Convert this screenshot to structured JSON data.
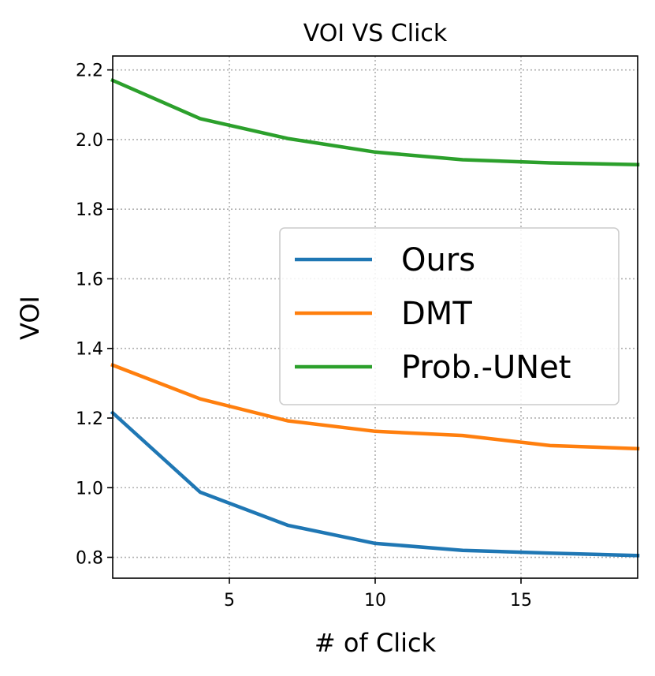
{
  "chart_data": {
    "type": "line",
    "title": "VOI VS Click",
    "xlabel": "# of Click",
    "ylabel": "VOI",
    "xlim": [
      1,
      19
    ],
    "ylim": [
      0.74,
      2.24
    ],
    "xticks": [
      5,
      10,
      15
    ],
    "xtick_labels": [
      "5",
      "10",
      "15"
    ],
    "yticks": [
      0.8,
      1.0,
      1.2,
      1.4,
      1.6,
      1.8,
      2.0,
      2.2
    ],
    "ytick_labels": [
      "0.8",
      "1.0",
      "1.2",
      "1.4",
      "1.6",
      "1.8",
      "2.0",
      "2.2"
    ],
    "grid": true,
    "legend_position": "center-right",
    "x": [
      1,
      4,
      7,
      10,
      13,
      16,
      19
    ],
    "series": [
      {
        "name": "Ours",
        "color": "#1f77b4",
        "values": [
          1.215,
          0.987,
          0.892,
          0.84,
          0.82,
          0.812,
          0.805
        ]
      },
      {
        "name": "DMT",
        "color": "#ff7f0e",
        "values": [
          1.352,
          1.255,
          1.192,
          1.162,
          1.15,
          1.121,
          1.112
        ]
      },
      {
        "name": "Prob.-UNet",
        "color": "#2ca02c",
        "values": [
          2.17,
          2.06,
          2.003,
          1.964,
          1.942,
          1.933,
          1.928
        ]
      }
    ]
  }
}
